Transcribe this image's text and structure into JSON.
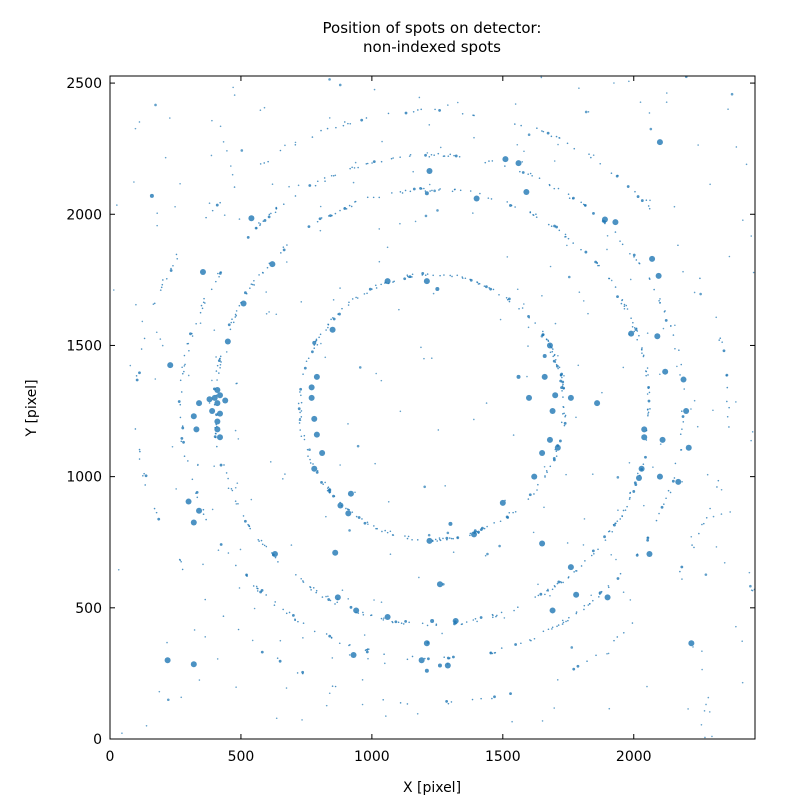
{
  "chart_data": {
    "type": "scatter",
    "title_lines": [
      "Position of spots on detector:",
      "non-indexed spots"
    ],
    "xlabel": "X [pixel]",
    "ylabel": "Y [pixel]",
    "xlim": [
      0,
      2463
    ],
    "ylim": [
      0,
      2527
    ],
    "xticks": [
      0,
      500,
      1000,
      1500,
      2000
    ],
    "yticks": [
      0,
      500,
      1000,
      1500,
      2000,
      2500
    ],
    "grid": false,
    "legend": "none",
    "beam_center": [
      1230,
      1265
    ],
    "series_color": "#1f77b4",
    "rings": [
      {
        "r": 505,
        "n": 240,
        "minor_seed": 11
      },
      {
        "r": 830,
        "n": 300,
        "minor_seed": 23
      },
      {
        "r": 960,
        "n": 260,
        "minor_seed": 37
      },
      {
        "r": 1130,
        "n": 140,
        "minor_seed": 51
      }
    ],
    "background_points": 320,
    "large_spots": [
      {
        "x": 2100,
        "y": 2275,
        "s": 3
      },
      {
        "x": 1510,
        "y": 2210,
        "s": 3
      },
      {
        "x": 1560,
        "y": 2195,
        "s": 3
      },
      {
        "x": 1220,
        "y": 2165,
        "s": 3
      },
      {
        "x": 1590,
        "y": 2085,
        "s": 3
      },
      {
        "x": 1400,
        "y": 2060,
        "s": 3
      },
      {
        "x": 1210,
        "y": 2080,
        "s": 2
      },
      {
        "x": 540,
        "y": 1985,
        "s": 3
      },
      {
        "x": 1890,
        "y": 1980,
        "s": 3
      },
      {
        "x": 1930,
        "y": 1970,
        "s": 3
      },
      {
        "x": 160,
        "y": 2070,
        "s": 2
      },
      {
        "x": 355,
        "y": 1780,
        "s": 3
      },
      {
        "x": 620,
        "y": 1810,
        "s": 3
      },
      {
        "x": 2070,
        "y": 1830,
        "s": 3
      },
      {
        "x": 2095,
        "y": 1765,
        "s": 3
      },
      {
        "x": 1060,
        "y": 1745,
        "s": 3
      },
      {
        "x": 1210,
        "y": 1745,
        "s": 3
      },
      {
        "x": 1250,
        "y": 1715,
        "s": 2
      },
      {
        "x": 510,
        "y": 1660,
        "s": 3
      },
      {
        "x": 850,
        "y": 1560,
        "s": 3
      },
      {
        "x": 1990,
        "y": 1545,
        "s": 3
      },
      {
        "x": 2090,
        "y": 1535,
        "s": 3
      },
      {
        "x": 450,
        "y": 1515,
        "s": 3
      },
      {
        "x": 1680,
        "y": 1500,
        "s": 3
      },
      {
        "x": 230,
        "y": 1425,
        "s": 3
      },
      {
        "x": 780,
        "y": 1510,
        "s": 2
      },
      {
        "x": 2120,
        "y": 1400,
        "s": 3
      },
      {
        "x": 2190,
        "y": 1370,
        "s": 3
      },
      {
        "x": 410,
        "y": 1330,
        "s": 3
      },
      {
        "x": 420,
        "y": 1310,
        "s": 3
      },
      {
        "x": 400,
        "y": 1300,
        "s": 3
      },
      {
        "x": 380,
        "y": 1295,
        "s": 3
      },
      {
        "x": 440,
        "y": 1290,
        "s": 3
      },
      {
        "x": 410,
        "y": 1280,
        "s": 3
      },
      {
        "x": 340,
        "y": 1280,
        "s": 3
      },
      {
        "x": 390,
        "y": 1250,
        "s": 3
      },
      {
        "x": 420,
        "y": 1240,
        "s": 3
      },
      {
        "x": 410,
        "y": 1210,
        "s": 3
      },
      {
        "x": 410,
        "y": 1180,
        "s": 3
      },
      {
        "x": 420,
        "y": 1150,
        "s": 3
      },
      {
        "x": 320,
        "y": 1230,
        "s": 3
      },
      {
        "x": 330,
        "y": 1180,
        "s": 3
      },
      {
        "x": 770,
        "y": 1340,
        "s": 3
      },
      {
        "x": 790,
        "y": 1380,
        "s": 3
      },
      {
        "x": 770,
        "y": 1300,
        "s": 3
      },
      {
        "x": 780,
        "y": 1220,
        "s": 3
      },
      {
        "x": 790,
        "y": 1160,
        "s": 3
      },
      {
        "x": 810,
        "y": 1090,
        "s": 3
      },
      {
        "x": 780,
        "y": 1030,
        "s": 3
      },
      {
        "x": 920,
        "y": 935,
        "s": 3
      },
      {
        "x": 880,
        "y": 890,
        "s": 3
      },
      {
        "x": 910,
        "y": 860,
        "s": 3
      },
      {
        "x": 1600,
        "y": 1300,
        "s": 3
      },
      {
        "x": 1660,
        "y": 1380,
        "s": 3
      },
      {
        "x": 1700,
        "y": 1310,
        "s": 3
      },
      {
        "x": 1760,
        "y": 1300,
        "s": 3
      },
      {
        "x": 1690,
        "y": 1250,
        "s": 3
      },
      {
        "x": 1650,
        "y": 1090,
        "s": 3
      },
      {
        "x": 1680,
        "y": 1140,
        "s": 3
      },
      {
        "x": 1710,
        "y": 1110,
        "s": 3
      },
      {
        "x": 1620,
        "y": 1000,
        "s": 3
      },
      {
        "x": 1500,
        "y": 900,
        "s": 3
      },
      {
        "x": 1860,
        "y": 1280,
        "s": 3
      },
      {
        "x": 2040,
        "y": 1180,
        "s": 3
      },
      {
        "x": 2040,
        "y": 1150,
        "s": 3
      },
      {
        "x": 2110,
        "y": 1140,
        "s": 3
      },
      {
        "x": 2200,
        "y": 1250,
        "s": 3
      },
      {
        "x": 2210,
        "y": 1110,
        "s": 3
      },
      {
        "x": 2030,
        "y": 1030,
        "s": 3
      },
      {
        "x": 2020,
        "y": 995,
        "s": 3
      },
      {
        "x": 2100,
        "y": 1000,
        "s": 3
      },
      {
        "x": 2170,
        "y": 980,
        "s": 3
      },
      {
        "x": 300,
        "y": 905,
        "s": 3
      },
      {
        "x": 340,
        "y": 870,
        "s": 3
      },
      {
        "x": 320,
        "y": 825,
        "s": 3
      },
      {
        "x": 1300,
        "y": 820,
        "s": 2
      },
      {
        "x": 1390,
        "y": 780,
        "s": 3
      },
      {
        "x": 1220,
        "y": 755,
        "s": 3
      },
      {
        "x": 1650,
        "y": 745,
        "s": 3
      },
      {
        "x": 860,
        "y": 710,
        "s": 3
      },
      {
        "x": 2060,
        "y": 705,
        "s": 3
      },
      {
        "x": 630,
        "y": 705,
        "s": 3
      },
      {
        "x": 1760,
        "y": 655,
        "s": 3
      },
      {
        "x": 1260,
        "y": 590,
        "s": 3
      },
      {
        "x": 870,
        "y": 540,
        "s": 3
      },
      {
        "x": 1780,
        "y": 550,
        "s": 3
      },
      {
        "x": 1900,
        "y": 540,
        "s": 3
      },
      {
        "x": 1690,
        "y": 490,
        "s": 3
      },
      {
        "x": 940,
        "y": 490,
        "s": 3
      },
      {
        "x": 1060,
        "y": 465,
        "s": 3
      },
      {
        "x": 1320,
        "y": 450,
        "s": 3
      },
      {
        "x": 1230,
        "y": 450,
        "s": 2
      },
      {
        "x": 2220,
        "y": 365,
        "s": 3
      },
      {
        "x": 1210,
        "y": 365,
        "s": 3
      },
      {
        "x": 930,
        "y": 320,
        "s": 3
      },
      {
        "x": 220,
        "y": 300,
        "s": 3
      },
      {
        "x": 320,
        "y": 285,
        "s": 3
      },
      {
        "x": 1190,
        "y": 300,
        "s": 3
      },
      {
        "x": 1290,
        "y": 280,
        "s": 3
      },
      {
        "x": 1260,
        "y": 280,
        "s": 2
      },
      {
        "x": 1210,
        "y": 260,
        "s": 2
      },
      {
        "x": 1660,
        "y": 1460,
        "s": 2
      },
      {
        "x": 1560,
        "y": 1380,
        "s": 2
      }
    ]
  }
}
